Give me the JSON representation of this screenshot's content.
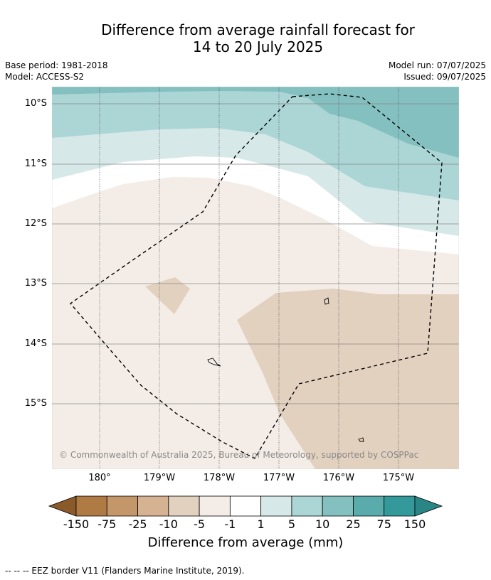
{
  "title": {
    "line1": "Difference from average rainfall forecast for",
    "line2": "14 to 20 July 2025"
  },
  "meta": {
    "base_period": "Base period: 1981-2018",
    "model": "Model: ACCESS-S2",
    "model_run": "Model run: 07/07/2025",
    "issued": "Issued: 09/07/2025"
  },
  "axes": {
    "lat_labels": [
      "10°S",
      "11°S",
      "12°S",
      "13°S",
      "14°S",
      "15°S"
    ],
    "lon_labels": [
      "180°",
      "179°W",
      "178°W",
      "177°W",
      "176°W",
      "175°W"
    ]
  },
  "credit": "© Commonwealth of Australia 2025, Bureau of Meteorology, supported by COSPPac",
  "colorbar": {
    "title": "Difference from average (mm)",
    "labels": [
      "-150",
      "-75",
      "-25",
      "-10",
      "-5",
      "-1",
      "1",
      "5",
      "10",
      "25",
      "75",
      "150"
    ],
    "colors": [
      "#8a5a2b",
      "#b07a44",
      "#c4976a",
      "#d4b292",
      "#e3d1bf",
      "#f4ede7",
      "#ffffff",
      "#d6e9e8",
      "#acd5d5",
      "#84c0c0",
      "#5aabab",
      "#33999a",
      "#2a8585"
    ]
  },
  "map_colors": {
    "dry_moderate": "#e3d1bf",
    "dry_light": "#f4ede7",
    "neutral": "#ffffff",
    "wet_light": "#d6e9e8",
    "wet_moderate": "#acd5d5",
    "wet_high": "#84c0c0"
  },
  "footnote": "--  --  -- EEZ border V11 (Flanders Marine Institute, 2019)."
}
